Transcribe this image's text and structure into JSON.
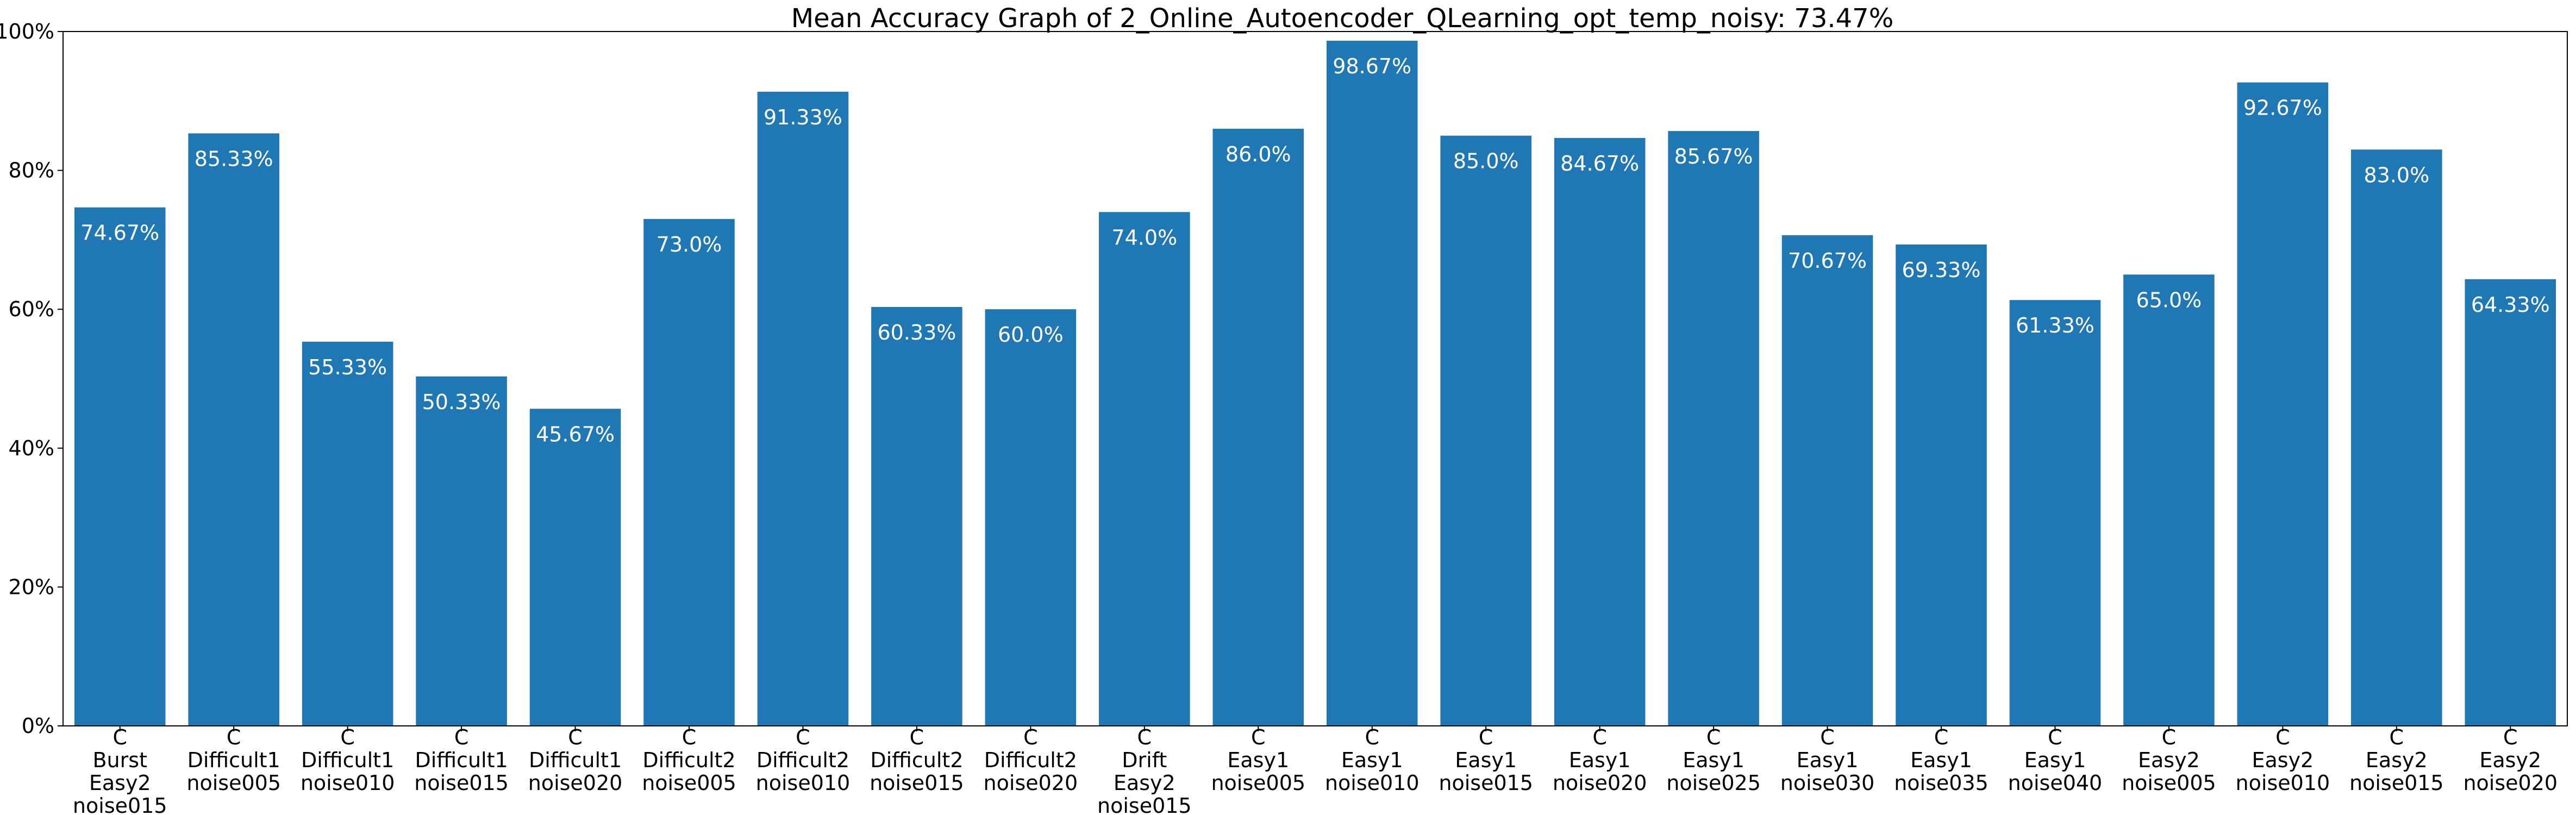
{
  "chart_data": {
    "type": "bar",
    "title": "Mean Accuracy Graph of 2_Online_Autoencoder_QLearning_opt_temp_noisy: 73.47%",
    "xlabel": "",
    "ylabel": "",
    "ylim": [
      0,
      100
    ],
    "yticks": [
      0,
      20,
      40,
      60,
      80,
      100
    ],
    "ytick_labels": [
      "0%",
      "20%",
      "40%",
      "60%",
      "80%",
      "100%"
    ],
    "grid": false,
    "bar_color": "#1f77b4",
    "categories": [
      [
        "C",
        "Burst",
        "Easy2",
        "noise015"
      ],
      [
        "C",
        "Difficult1",
        "noise005"
      ],
      [
        "C",
        "Difficult1",
        "noise010"
      ],
      [
        "C",
        "Difficult1",
        "noise015"
      ],
      [
        "C",
        "Difficult1",
        "noise020"
      ],
      [
        "C",
        "Difficult2",
        "noise005"
      ],
      [
        "C",
        "Difficult2",
        "noise010"
      ],
      [
        "C",
        "Difficult2",
        "noise015"
      ],
      [
        "C",
        "Difficult2",
        "noise020"
      ],
      [
        "C",
        "Drift",
        "Easy2",
        "noise015"
      ],
      [
        "C",
        "Easy1",
        "noise005"
      ],
      [
        "C",
        "Easy1",
        "noise010"
      ],
      [
        "C",
        "Easy1",
        "noise015"
      ],
      [
        "C",
        "Easy1",
        "noise020"
      ],
      [
        "C",
        "Easy1",
        "noise025"
      ],
      [
        "C",
        "Easy1",
        "noise030"
      ],
      [
        "C",
        "Easy1",
        "noise035"
      ],
      [
        "C",
        "Easy1",
        "noise040"
      ],
      [
        "C",
        "Easy2",
        "noise005"
      ],
      [
        "C",
        "Easy2",
        "noise010"
      ],
      [
        "C",
        "Easy2",
        "noise015"
      ],
      [
        "C",
        "Easy2",
        "noise020"
      ]
    ],
    "values": [
      74.67,
      85.33,
      55.33,
      50.33,
      45.67,
      73.0,
      91.33,
      60.33,
      60.0,
      74.0,
      86.0,
      98.67,
      85.0,
      84.67,
      85.67,
      70.67,
      69.33,
      61.33,
      65.0,
      92.67,
      83.0,
      64.33
    ],
    "value_labels": [
      "74.67%",
      "85.33%",
      "55.33%",
      "50.33%",
      "45.67%",
      "73.0%",
      "91.33%",
      "60.33%",
      "60.0%",
      "74.0%",
      "86.0%",
      "98.67%",
      "85.0%",
      "84.67%",
      "85.67%",
      "70.67%",
      "69.33%",
      "61.33%",
      "65.0%",
      "92.67%",
      "83.0%",
      "64.33%"
    ]
  }
}
